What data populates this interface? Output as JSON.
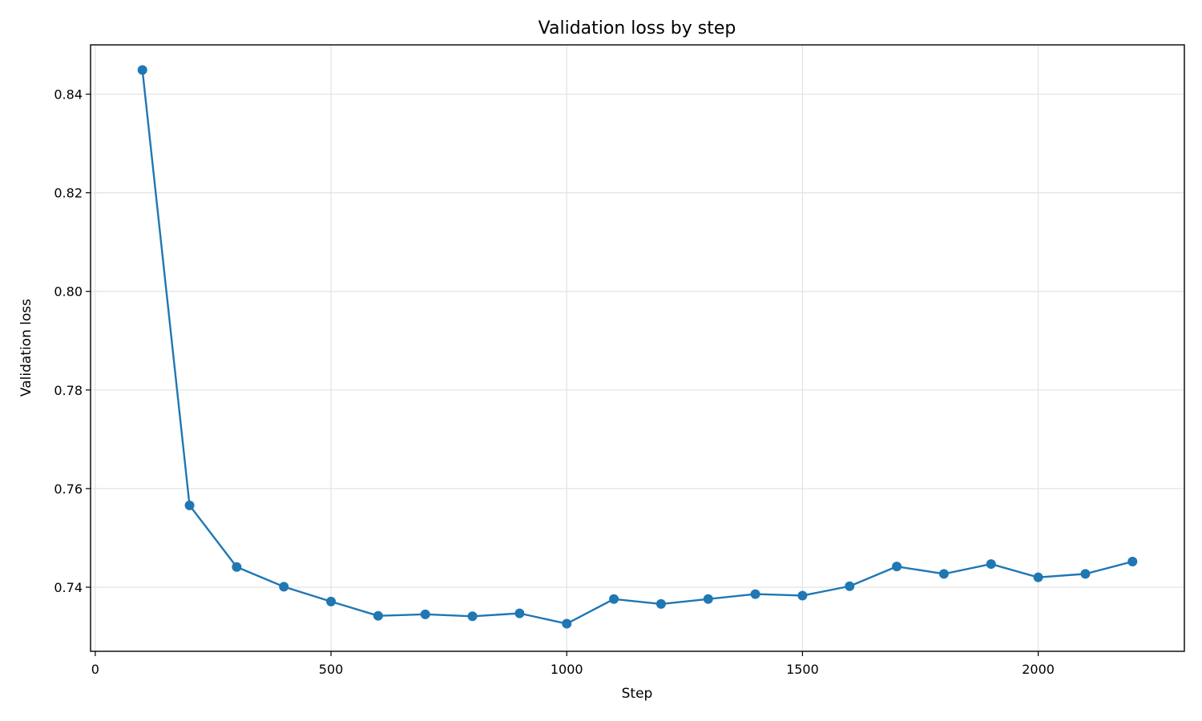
{
  "chart_data": {
    "type": "line",
    "title": "Validation loss by step",
    "xlabel": "Step",
    "ylabel": "Validation loss",
    "xlim": [
      -10,
      2310
    ],
    "ylim": [
      0.727,
      0.85
    ],
    "xticks": [
      0,
      500,
      1000,
      1500,
      2000
    ],
    "xtick_labels": [
      "0",
      "500",
      "1000",
      "1500",
      "2000"
    ],
    "yticks": [
      0.74,
      0.76,
      0.78,
      0.8,
      0.82,
      0.84
    ],
    "ytick_labels": [
      "0.74",
      "0.76",
      "0.78",
      "0.80",
      "0.82",
      "0.84"
    ],
    "grid": true,
    "legend": "none",
    "series": [
      {
        "color": "#1f77b4",
        "marker": "circle",
        "x": [
          100,
          200,
          300,
          400,
          500,
          600,
          700,
          800,
          900,
          1000,
          1100,
          1200,
          1300,
          1400,
          1500,
          1600,
          1700,
          1800,
          1900,
          2000,
          2100,
          2200
        ],
        "y": [
          0.8449,
          0.7566,
          0.7441,
          0.7401,
          0.7371,
          0.7342,
          0.7345,
          0.7341,
          0.7347,
          0.7326,
          0.7376,
          0.7366,
          0.7376,
          0.7386,
          0.7383,
          0.7402,
          0.7442,
          0.7427,
          0.7447,
          0.742,
          0.7427,
          0.7452
        ]
      }
    ]
  }
}
